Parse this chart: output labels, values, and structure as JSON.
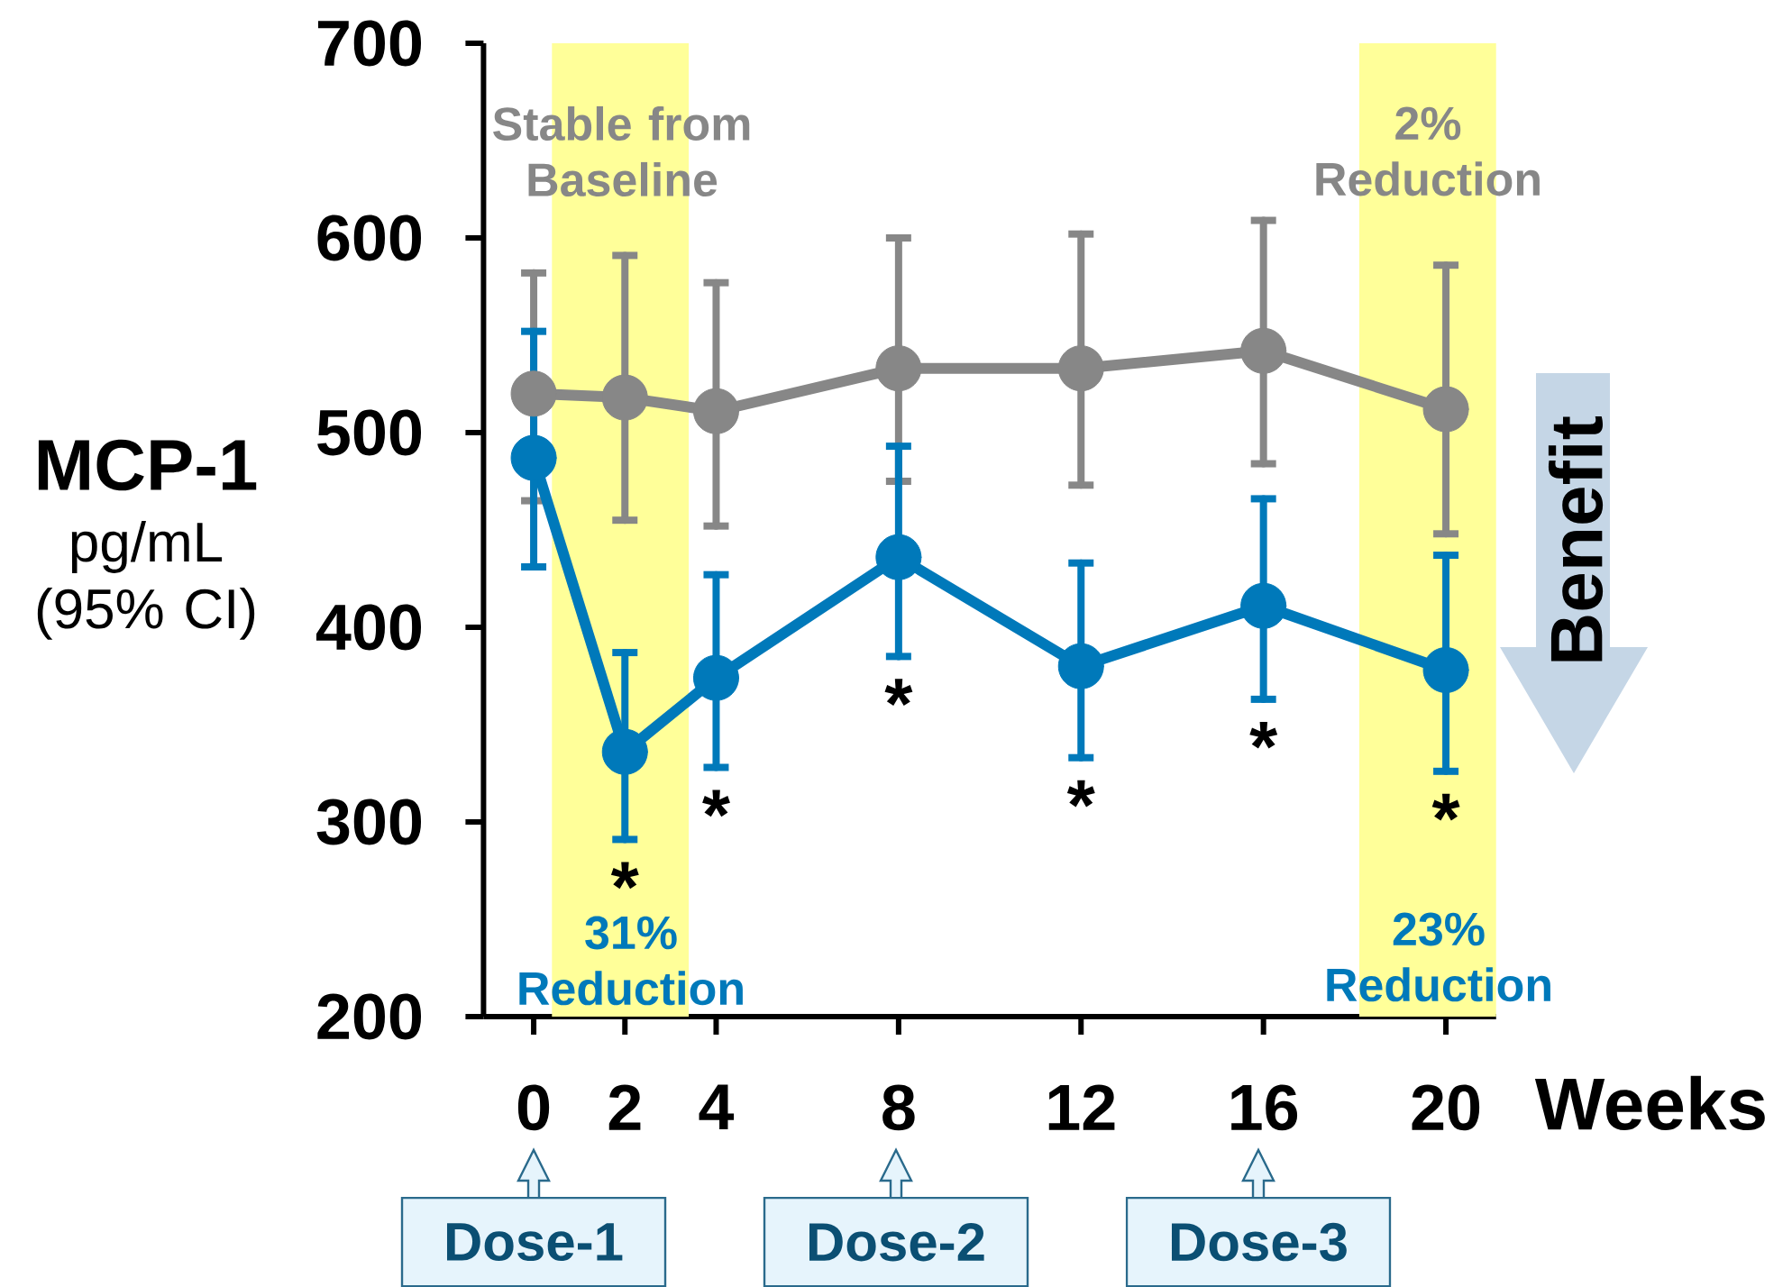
{
  "chart_data": {
    "type": "line",
    "xlabel": "Weeks",
    "ylabel": "MCP-1",
    "x": [
      0,
      2,
      4,
      8,
      12,
      16,
      20
    ],
    "xlim": [
      -1.1,
      21.1
    ],
    "xticks": [
      0,
      2,
      4,
      8,
      12,
      16,
      20
    ],
    "ylim": [
      200,
      700
    ],
    "yticks": [
      200,
      300,
      400,
      500,
      600,
      700
    ],
    "marker": "circle",
    "series": [
      {
        "color": "#878787",
        "values": [
          520,
          518,
          511,
          533,
          533,
          542,
          512
        ],
        "errors": [
          [
            465,
            582
          ],
          [
            455,
            591
          ],
          [
            452,
            577
          ],
          [
            475,
            600
          ],
          [
            473,
            602
          ],
          [
            484,
            609
          ],
          [
            448,
            586
          ]
        ]
      },
      {
        "color": "#0079ba",
        "values": [
          487,
          336,
          374,
          436,
          380,
          411,
          378
        ],
        "errors": [
          [
            431,
            552
          ],
          [
            291,
            387
          ],
          [
            328,
            427
          ],
          [
            385,
            493
          ],
          [
            333,
            433
          ],
          [
            363,
            466
          ],
          [
            326,
            437
          ]
        ],
        "value_labels": [
          null,
          "*",
          "*",
          "*",
          "*",
          "*",
          "*"
        ]
      }
    ],
    "bands": [
      {
        "axis": "x",
        "from": 0.4,
        "to": 3.4,
        "color": "#ffff99"
      },
      {
        "axis": "x",
        "from": 18.1,
        "to": 21.1,
        "color": "#ffff99"
      }
    ],
    "annotations": [
      "pg/mL (95% CI)",
      "Benefit",
      "Stable from Baseline",
      "2% Reduction",
      "31% Reduction",
      "23% Reduction",
      "Dose-1",
      "Dose-2",
      "Dose-3"
    ]
  }
}
